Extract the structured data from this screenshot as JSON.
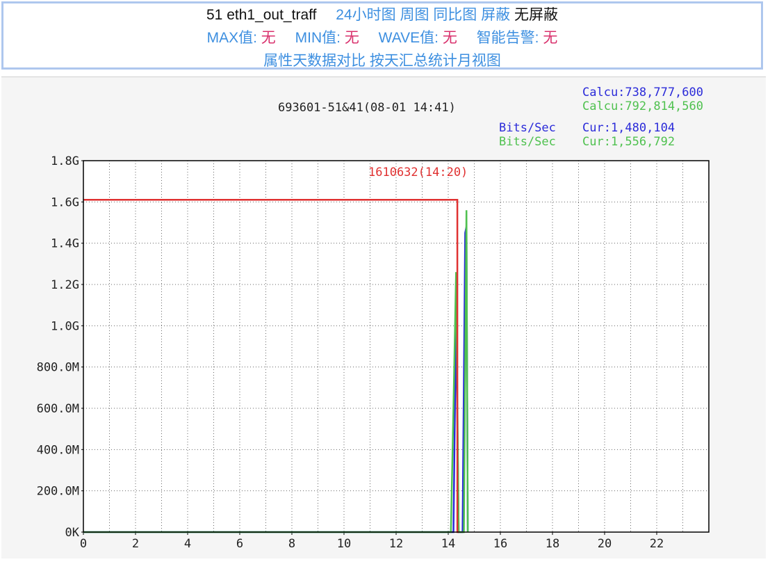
{
  "header": {
    "title": "51 eth1_out_traff",
    "links": [
      "24小时图",
      "周图",
      "同比图",
      "屏蔽"
    ],
    "unmask": "无屏蔽",
    "stats": [
      {
        "label": "MAX值:",
        "value": "无"
      },
      {
        "label": "MIN值:",
        "value": "无"
      },
      {
        "label": "WAVE值:",
        "value": "无"
      },
      {
        "label": "智能告警:",
        "value": "无"
      }
    ],
    "bottom_links": [
      "属性天数据对比",
      "按天汇总统计月视图"
    ]
  },
  "graph": {
    "id_label": "693601-51&41(08-01 14:41)",
    "calc_blue": "Calcu:738,777,600",
    "calc_green": "Calcu:792,814,560",
    "bits_label": "Bits/Sec",
    "cur_blue": "Cur:1,480,104",
    "cur_green": "Cur:1,556,792",
    "threshold_label": "1610632(14:20)",
    "colors": {
      "blue": "#2b2bd9",
      "green": "#4fc14f",
      "red": "#e03030",
      "text": "#222222"
    }
  },
  "chart_data": {
    "type": "line",
    "xlim": [
      0,
      24
    ],
    "ylim": [
      0,
      1800000000
    ],
    "x_ticks": [
      "0",
      "2",
      "4",
      "6",
      "8",
      "10",
      "12",
      "14",
      "16",
      "18",
      "20",
      "22"
    ],
    "y_ticks": [
      {
        "label": "0K",
        "value": 0
      },
      {
        "label": "200.0M",
        "value": 200000000
      },
      {
        "label": "400.0M",
        "value": 400000000
      },
      {
        "label": "600.0M",
        "value": 600000000
      },
      {
        "label": "800.0M",
        "value": 800000000
      },
      {
        "label": "1.0G",
        "value": 1000000000
      },
      {
        "label": "1.2G",
        "value": 1200000000
      },
      {
        "label": "1.4G",
        "value": 1400000000
      },
      {
        "label": "1.6G",
        "value": 1600000000
      },
      {
        "label": "1.8G",
        "value": 1800000000
      }
    ],
    "series": [
      {
        "color": "#2b2bd9",
        "x": [
          0,
          14.1,
          14.2,
          14.3,
          14.4,
          14.5,
          14.55,
          14.65,
          14.7,
          14.75
        ],
        "y": [
          0,
          0,
          0,
          1050000000,
          0,
          0,
          0,
          1450000000,
          1480000000,
          0
        ]
      },
      {
        "color": "#4fc14f",
        "x": [
          0,
          14.1,
          14.2,
          14.3,
          14.4,
          14.5,
          14.6,
          14.7,
          14.75
        ],
        "y": [
          0,
          0,
          600000000,
          1260000000,
          0,
          0,
          0,
          1560000000,
          0
        ]
      },
      {
        "color": "#e03030",
        "x": [
          0,
          14.35,
          14.35,
          14.4
        ],
        "y": [
          1610632000,
          1610632000,
          0,
          0
        ]
      }
    ]
  }
}
